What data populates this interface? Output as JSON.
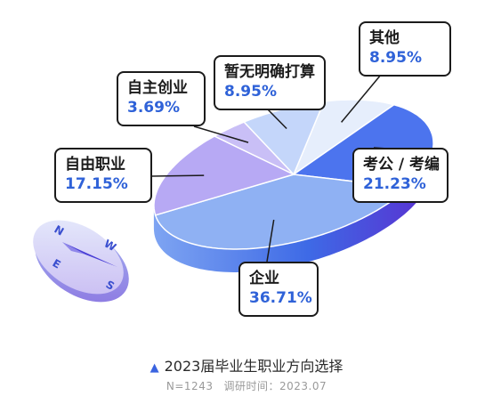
{
  "chart_data": {
    "type": "pie",
    "title": "2023届毕业生职业方向选择",
    "sample_note": "N=1243",
    "survey_time": "调研时间：2023.07",
    "slices": [
      {
        "label": "其他",
        "display": "8.95%",
        "value": 8.95,
        "color": "#e6eefc"
      },
      {
        "label": "考公 / 考编",
        "display": "21.23%",
        "value": 21.23,
        "color": "#4c74ee"
      },
      {
        "label": "企业",
        "display": "36.71%",
        "value": 36.71,
        "color": "#8fb1f3"
      },
      {
        "label": "自由职业",
        "display": "17.15%",
        "value": 17.15,
        "color": "#b7a9f4"
      },
      {
        "label": "自主创业",
        "display": "3.69%",
        "value": 3.69,
        "color": "#c9bff6"
      },
      {
        "label": "暂无明确打算",
        "display": "8.95%",
        "value": 8.95,
        "color": "#c4d6fa"
      }
    ]
  },
  "compass": {
    "letters": [
      "N",
      "W",
      "S",
      "E"
    ]
  }
}
